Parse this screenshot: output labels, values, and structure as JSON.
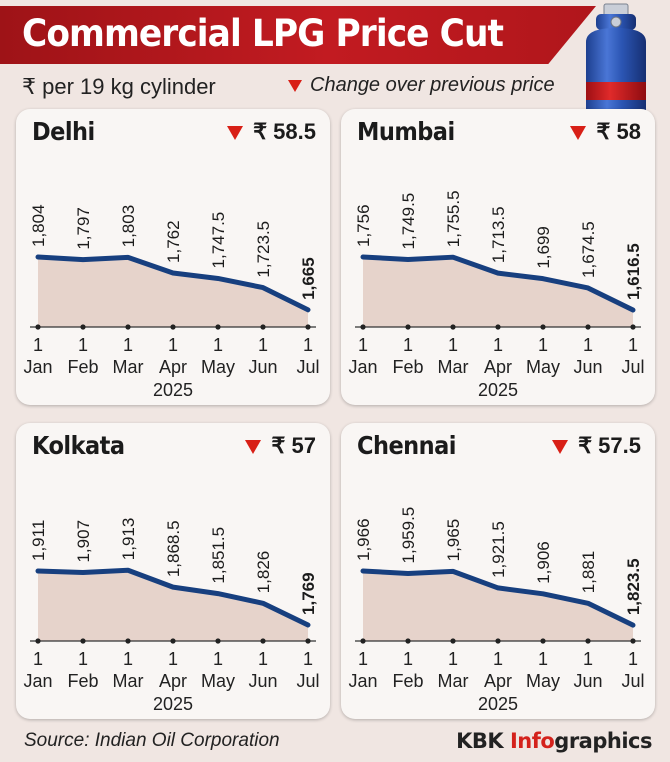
{
  "header": {
    "title": "Commercial LPG Price Cut",
    "unit": "₹ per 19 kg cylinder",
    "legend": "Change over previous price"
  },
  "colors": {
    "banner": "#b5171c",
    "line": "#173f7f",
    "area": "#e6d3cb",
    "down_marker": "#d81f16",
    "accent": "#d4221c"
  },
  "panels": [
    {
      "city": "Delhi",
      "change": "₹ 58.5"
    },
    {
      "city": "Mumbai",
      "change": "₹ 58"
    },
    {
      "city": "Kolkata",
      "change": "₹ 57"
    },
    {
      "city": "Chennai",
      "change": "₹ 57.5"
    }
  ],
  "chart_data": [
    {
      "type": "area",
      "title": "Delhi",
      "categories": [
        "1 Jan",
        "1 Feb",
        "1 Mar",
        "1 Apr",
        "1 May",
        "1 Jun",
        "1 Jul"
      ],
      "x_tick_top": [
        "1",
        "1",
        "1",
        "1",
        "1",
        "1",
        "1"
      ],
      "x_tick_bottom": [
        "Jan",
        "Feb",
        "Mar",
        "Apr",
        "May",
        "Jun",
        "Jul"
      ],
      "year_label": "2025",
      "values": [
        1804,
        1797,
        1803,
        1762,
        1747.5,
        1723.5,
        1665
      ],
      "value_labels": [
        "1,804",
        "1,797",
        "1,803",
        "1,762",
        "1,747.5",
        "1,723.5",
        "1,665"
      ],
      "highlight_last": true
    },
    {
      "type": "area",
      "title": "Mumbai",
      "categories": [
        "1 Jan",
        "1 Feb",
        "1 Mar",
        "1 Apr",
        "1 May",
        "1 Jun",
        "1 Jul"
      ],
      "x_tick_top": [
        "1",
        "1",
        "1",
        "1",
        "1",
        "1",
        "1"
      ],
      "x_tick_bottom": [
        "Jan",
        "Feb",
        "Mar",
        "Apr",
        "May",
        "Jun",
        "Jul"
      ],
      "year_label": "2025",
      "values": [
        1756,
        1749.5,
        1755.5,
        1713.5,
        1699,
        1674.5,
        1616.5
      ],
      "value_labels": [
        "1,756",
        "1,749.5",
        "1,755.5",
        "1,713.5",
        "1,699",
        "1,674.5",
        "1,616.5"
      ],
      "highlight_last": true
    },
    {
      "type": "area",
      "title": "Kolkata",
      "categories": [
        "1 Jan",
        "1 Feb",
        "1 Mar",
        "1 Apr",
        "1 May",
        "1 Jun",
        "1 Jul"
      ],
      "x_tick_top": [
        "1",
        "1",
        "1",
        "1",
        "1",
        "1",
        "1"
      ],
      "x_tick_bottom": [
        "Jan",
        "Feb",
        "Mar",
        "Apr",
        "May",
        "Jun",
        "Jul"
      ],
      "year_label": "2025",
      "values": [
        1911,
        1907,
        1913,
        1868.5,
        1851.5,
        1826,
        1769
      ],
      "value_labels": [
        "1,911",
        "1,907",
        "1,913",
        "1,868.5",
        "1,851.5",
        "1,826",
        "1,769"
      ],
      "highlight_last": true
    },
    {
      "type": "area",
      "title": "Chennai",
      "categories": [
        "1 Jan",
        "1 Feb",
        "1 Mar",
        "1 Apr",
        "1 May",
        "1 Jun",
        "1 Jul"
      ],
      "x_tick_top": [
        "1",
        "1",
        "1",
        "1",
        "1",
        "1",
        "1"
      ],
      "x_tick_bottom": [
        "Jan",
        "Feb",
        "Mar",
        "Apr",
        "May",
        "Jun",
        "Jul"
      ],
      "year_label": "2025",
      "values": [
        1966,
        1959.5,
        1965,
        1921.5,
        1906,
        1881,
        1823.5
      ],
      "value_labels": [
        "1,966",
        "1,959.5",
        "1,965",
        "1,921.5",
        "1,906",
        "1,881",
        "1,823.5"
      ],
      "highlight_last": true
    }
  ],
  "footer": {
    "source": "Source: Indian Oil Corporation",
    "brand_prefix": "KBK ",
    "brand_accent": "Info",
    "brand_suffix": "graphics"
  }
}
